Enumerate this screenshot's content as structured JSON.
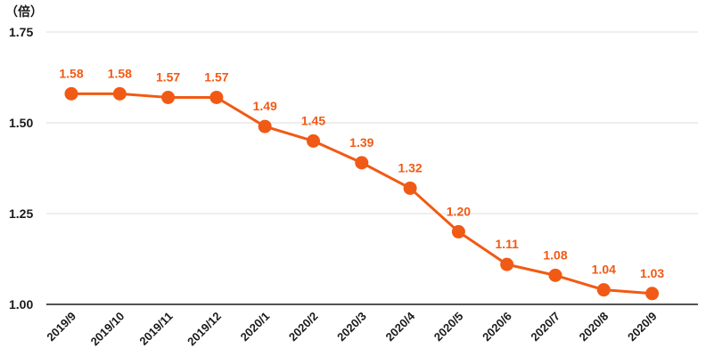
{
  "chart_data": {
    "type": "line",
    "unit_label": "（倍）",
    "categories": [
      "2019/9",
      "2019/10",
      "2019/11",
      "2019/12",
      "2020/1",
      "2020/2",
      "2020/3",
      "2020/4",
      "2020/5",
      "2020/6",
      "2020/7",
      "2020/8",
      "2020/9"
    ],
    "values": [
      1.58,
      1.58,
      1.57,
      1.57,
      1.49,
      1.45,
      1.39,
      1.32,
      1.2,
      1.11,
      1.08,
      1.04,
      1.03
    ],
    "data_labels": [
      "1.58",
      "1.58",
      "1.57",
      "1.57",
      "1.49",
      "1.45",
      "1.39",
      "1.32",
      "1.20",
      "1.11",
      "1.08",
      "1.04",
      "1.03"
    ],
    "y_ticks": [
      "1.75",
      "1.50",
      "1.25",
      "1.00"
    ],
    "y_tick_values": [
      1.75,
      1.5,
      1.25,
      1.0
    ],
    "ylim": [
      1.0,
      1.75
    ],
    "grid": true,
    "legend": "none",
    "colors": {
      "series": "#f15a14",
      "grid": "#dddddd",
      "axis": "#1a1a1a",
      "text": "#1a1a1a"
    }
  }
}
